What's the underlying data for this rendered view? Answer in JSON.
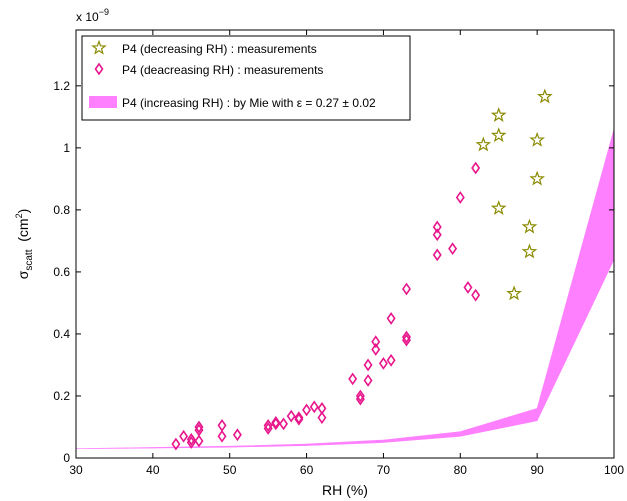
{
  "chart_data": {
    "type": "scatter",
    "xlabel": "RH (%)",
    "ylabel": {
      "main": "σ",
      "sub": "scatt",
      "unit_open": "  (cm",
      "sup": "2",
      "unit_close": ")"
    },
    "y_multiplier": {
      "base": "x 10",
      "exp": "−9"
    },
    "xlim": [
      30,
      100
    ],
    "ylim": [
      0,
      1.38
    ],
    "x_ticks": [
      30,
      40,
      50,
      60,
      70,
      80,
      90,
      100
    ],
    "x_tick_labels": [
      "30",
      "40",
      "50",
      "60",
      "70",
      "80",
      "90",
      "100"
    ],
    "y_ticks": [
      0,
      0.2,
      0.4,
      0.6,
      0.8,
      1.0,
      1.2
    ],
    "y_tick_labels": [
      "0",
      "0.2",
      "0.4",
      "0.6",
      "0.8",
      "1",
      "1.2"
    ],
    "grid": false,
    "legend_position": "top-left",
    "colors": {
      "stars": "#8a8a00",
      "diamonds": "#e8168c",
      "band": "#ff80ff"
    },
    "series": [
      {
        "name": "P4 (decreasing RH) : measurements",
        "marker": "star",
        "points": [
          [
            85,
            1.105
          ],
          [
            85,
            1.04
          ],
          [
            83,
            1.01
          ],
          [
            91,
            1.165
          ],
          [
            90,
            1.025
          ],
          [
            90,
            0.9
          ],
          [
            85,
            0.805
          ],
          [
            89,
            0.745
          ],
          [
            89,
            0.665
          ],
          [
            87,
            0.53
          ]
        ]
      },
      {
        "name": "P4 (deacreasing RH) : measurements",
        "marker": "diamond",
        "points": [
          [
            43,
            0.045
          ],
          [
            44,
            0.07
          ],
          [
            45,
            0.06
          ],
          [
            45,
            0.05
          ],
          [
            46,
            0.09
          ],
          [
            46,
            0.1
          ],
          [
            46,
            0.055
          ],
          [
            49,
            0.105
          ],
          [
            49,
            0.07
          ],
          [
            51,
            0.075
          ],
          [
            55,
            0.105
          ],
          [
            55,
            0.095
          ],
          [
            56,
            0.115
          ],
          [
            56,
            0.11
          ],
          [
            57,
            0.11
          ],
          [
            58,
            0.135
          ],
          [
            59,
            0.13
          ],
          [
            59,
            0.125
          ],
          [
            60,
            0.155
          ],
          [
            61,
            0.165
          ],
          [
            62,
            0.16
          ],
          [
            62,
            0.13
          ],
          [
            66,
            0.255
          ],
          [
            67,
            0.2
          ],
          [
            67,
            0.19
          ],
          [
            68,
            0.3
          ],
          [
            68,
            0.25
          ],
          [
            69,
            0.375
          ],
          [
            69,
            0.35
          ],
          [
            70,
            0.305
          ],
          [
            71,
            0.45
          ],
          [
            71,
            0.315
          ],
          [
            73,
            0.545
          ],
          [
            73,
            0.39
          ],
          [
            73,
            0.38
          ],
          [
            77,
            0.745
          ],
          [
            77,
            0.72
          ],
          [
            77,
            0.655
          ],
          [
            79,
            0.675
          ],
          [
            80,
            0.84
          ],
          [
            81,
            0.55
          ],
          [
            82,
            0.935
          ],
          [
            82,
            0.525
          ]
        ]
      },
      {
        "name": "P4 (increasing RH) : by Mie with ε = 0.27 ± 0.02",
        "marker": "band",
        "x": [
          30,
          40,
          50,
          60,
          70,
          80,
          90,
          100
        ],
        "lower": [
          0.03,
          0.032,
          0.035,
          0.04,
          0.05,
          0.07,
          0.12,
          0.64
        ],
        "upper": [
          0.03,
          0.034,
          0.038,
          0.045,
          0.058,
          0.085,
          0.16,
          1.06
        ]
      }
    ]
  }
}
